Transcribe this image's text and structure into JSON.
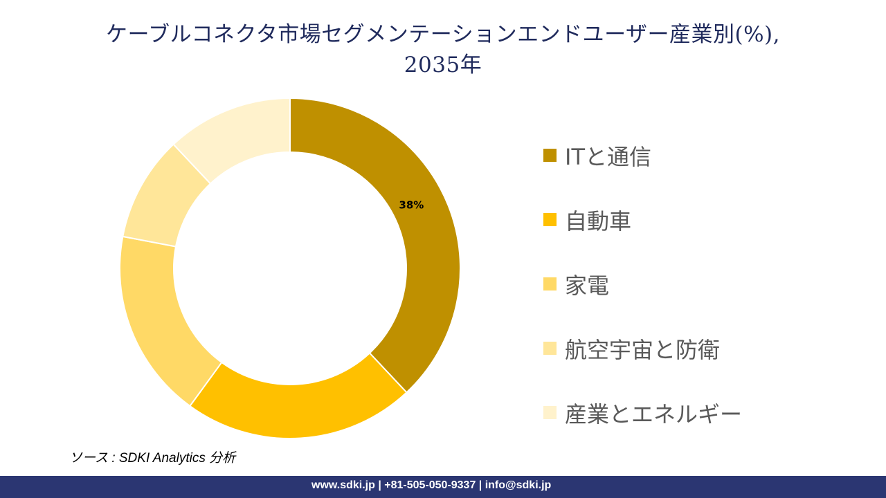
{
  "title": {
    "line1": "ケーブルコネクタ市場セグメンテーションエンドユーザー産業別(%),",
    "line2": "2035年"
  },
  "chart_data": {
    "type": "pie",
    "subtype": "donut",
    "title": "ケーブルコネクタ市場セグメンテーションエンドユーザー産業別(%), 2035年",
    "categories": [
      "ITと通信",
      "自動車",
      "家電",
      "航空宇宙と防衛",
      "産業とエネルギー"
    ],
    "values": [
      38,
      22,
      18,
      10,
      12
    ],
    "colors": [
      "#bf9000",
      "#ffc000",
      "#ffd966",
      "#ffe699",
      "#fff2cc"
    ],
    "data_labels": [
      "38%",
      "",
      "",
      "",
      ""
    ],
    "legend_position": "right",
    "unit": "%"
  },
  "legend": {
    "items": [
      {
        "label": "ITと通信",
        "color": "#bf9000"
      },
      {
        "label": "自動車",
        "color": "#ffc000"
      },
      {
        "label": "家電",
        "color": "#ffd966"
      },
      {
        "label": "航空宇宙と防衛",
        "color": "#ffe699"
      },
      {
        "label": "産業とエネルギー",
        "color": "#fff2cc"
      }
    ]
  },
  "source": "ソース : SDKI Analytics 分析",
  "footer": "www.sdki.jp | +81-505-050-9337 | info@sdki.jp"
}
